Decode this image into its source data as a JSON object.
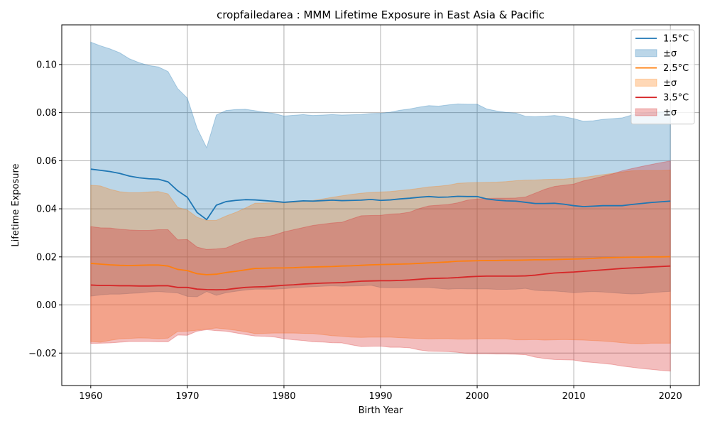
{
  "chart_data": {
    "type": "line",
    "title": "cropfailedarea : MMM Lifetime Exposure in East Asia & Pacific",
    "xlabel": "Birth Year",
    "ylabel": "Lifetime Exposure",
    "xlim": [
      1957,
      2023
    ],
    "ylim": [
      -0.0335,
      0.1165
    ],
    "xticks": [
      1960,
      1970,
      1980,
      1990,
      2000,
      2010,
      2020
    ],
    "yticks": [
      -0.02,
      0.0,
      0.02,
      0.04,
      0.06,
      0.08,
      0.1
    ],
    "ytick_labels": [
      "−0.02",
      "0.00",
      "0.02",
      "0.04",
      "0.06",
      "0.08",
      "0.10"
    ],
    "grid": true,
    "legend_position": "top-right",
    "x": [
      1960,
      1961,
      1962,
      1963,
      1964,
      1965,
      1966,
      1967,
      1968,
      1969,
      1970,
      1971,
      1972,
      1973,
      1974,
      1975,
      1976,
      1977,
      1978,
      1979,
      1980,
      1981,
      1982,
      1983,
      1984,
      1985,
      1986,
      1987,
      1988,
      1989,
      1990,
      1991,
      1992,
      1993,
      1994,
      1995,
      1996,
      1997,
      1998,
      1999,
      2000,
      2001,
      2002,
      2003,
      2004,
      2005,
      2006,
      2007,
      2008,
      2009,
      2010,
      2011,
      2012,
      2013,
      2014,
      2015,
      2016,
      2017,
      2018,
      2019,
      2020
    ],
    "series": [
      {
        "name": "1.5°C",
        "band_label": "±σ",
        "color": "#1f77b4",
        "mean": [
          0.0565,
          0.056,
          0.0555,
          0.0547,
          0.0536,
          0.0529,
          0.0525,
          0.0523,
          0.0512,
          0.0475,
          0.0448,
          0.0385,
          0.0355,
          0.0415,
          0.043,
          0.0435,
          0.0438,
          0.0437,
          0.0434,
          0.0431,
          0.0427,
          0.043,
          0.0433,
          0.0432,
          0.0434,
          0.0436,
          0.0434,
          0.0435,
          0.0436,
          0.0439,
          0.0435,
          0.0437,
          0.0441,
          0.0444,
          0.0448,
          0.0451,
          0.0448,
          0.0449,
          0.0452,
          0.0451,
          0.0451,
          0.0441,
          0.0436,
          0.0433,
          0.0432,
          0.0427,
          0.0422,
          0.0422,
          0.0423,
          0.0419,
          0.0413,
          0.0409,
          0.0411,
          0.0413,
          0.0413,
          0.0413,
          0.0418,
          0.0422,
          0.0426,
          0.0429,
          0.0432
        ],
        "sigma": [
          0.0528,
          0.0518,
          0.051,
          0.0502,
          0.0488,
          0.0479,
          0.0471,
          0.0467,
          0.0459,
          0.0425,
          0.0412,
          0.0351,
          0.0299,
          0.0375,
          0.0379,
          0.0378,
          0.0376,
          0.0371,
          0.0368,
          0.0365,
          0.0359,
          0.0359,
          0.0359,
          0.0356,
          0.0356,
          0.0356,
          0.0356,
          0.0356,
          0.0356,
          0.0357,
          0.0362,
          0.0365,
          0.0369,
          0.0371,
          0.0375,
          0.0378,
          0.0379,
          0.0383,
          0.0384,
          0.0384,
          0.0384,
          0.0374,
          0.0371,
          0.0368,
          0.0366,
          0.0358,
          0.0361,
          0.0363,
          0.0365,
          0.0364,
          0.0362,
          0.0355,
          0.0355,
          0.0359,
          0.0362,
          0.0365,
          0.0372,
          0.0375,
          0.0375,
          0.0375,
          0.0375
        ]
      },
      {
        "name": "2.5°C",
        "band_label": "±σ",
        "color": "#ff7f0e",
        "mean": [
          0.0173,
          0.017,
          0.0167,
          0.0165,
          0.0164,
          0.0165,
          0.0166,
          0.0166,
          0.0162,
          0.0148,
          0.0143,
          0.013,
          0.0126,
          0.0128,
          0.0135,
          0.014,
          0.0146,
          0.0152,
          0.0153,
          0.0154,
          0.0154,
          0.0155,
          0.0157,
          0.0158,
          0.0159,
          0.016,
          0.0162,
          0.0163,
          0.0165,
          0.0167,
          0.0168,
          0.0169,
          0.017,
          0.0171,
          0.0173,
          0.0175,
          0.0177,
          0.0179,
          0.0182,
          0.0183,
          0.0184,
          0.0185,
          0.0185,
          0.0186,
          0.0186,
          0.0187,
          0.0188,
          0.0188,
          0.0189,
          0.019,
          0.0191,
          0.0192,
          0.0194,
          0.0196,
          0.0197,
          0.0198,
          0.0199,
          0.0199,
          0.02,
          0.02,
          0.0201
        ],
        "sigma": [
          0.0325,
          0.0325,
          0.0314,
          0.0306,
          0.0303,
          0.0302,
          0.0304,
          0.0306,
          0.03,
          0.0258,
          0.0252,
          0.0235,
          0.0226,
          0.0224,
          0.0235,
          0.0245,
          0.0257,
          0.0271,
          0.0271,
          0.0271,
          0.0271,
          0.0272,
          0.0275,
          0.0277,
          0.0282,
          0.0288,
          0.0292,
          0.0297,
          0.03,
          0.0301,
          0.0302,
          0.0303,
          0.0306,
          0.0309,
          0.0312,
          0.0316,
          0.0317,
          0.0319,
          0.0324,
          0.0325,
          0.0325,
          0.0325,
          0.0326,
          0.0327,
          0.0331,
          0.0332,
          0.0332,
          0.0334,
          0.0334,
          0.0334,
          0.0336,
          0.0338,
          0.0342,
          0.0346,
          0.035,
          0.0355,
          0.0359,
          0.036,
          0.0359,
          0.0359,
          0.036
        ]
      },
      {
        "name": "3.5°C",
        "band_label": "±σ",
        "color": "#d62728",
        "mean": [
          0.0083,
          0.0081,
          0.0081,
          0.008,
          0.008,
          0.0079,
          0.0079,
          0.008,
          0.008,
          0.0073,
          0.0073,
          0.0066,
          0.0064,
          0.0063,
          0.0064,
          0.0069,
          0.0073,
          0.0075,
          0.0076,
          0.0079,
          0.0082,
          0.0084,
          0.0087,
          0.0089,
          0.0091,
          0.0092,
          0.0093,
          0.0096,
          0.0099,
          0.01,
          0.0101,
          0.0101,
          0.0102,
          0.0104,
          0.0107,
          0.011,
          0.0111,
          0.0112,
          0.0114,
          0.0117,
          0.0119,
          0.012,
          0.012,
          0.012,
          0.012,
          0.0121,
          0.0124,
          0.0129,
          0.0133,
          0.0135,
          0.0137,
          0.014,
          0.0143,
          0.0146,
          0.0149,
          0.0152,
          0.0154,
          0.0156,
          0.0158,
          0.016,
          0.0162
        ],
        "sigma": [
          0.0243,
          0.024,
          0.0239,
          0.0235,
          0.0232,
          0.0231,
          0.0231,
          0.0233,
          0.0233,
          0.0198,
          0.0199,
          0.0175,
          0.0167,
          0.017,
          0.0173,
          0.0185,
          0.0196,
          0.0204,
          0.0206,
          0.0212,
          0.0222,
          0.0229,
          0.0235,
          0.0242,
          0.0245,
          0.0249,
          0.0251,
          0.0262,
          0.0272,
          0.0272,
          0.0272,
          0.0277,
          0.0278,
          0.0282,
          0.0294,
          0.0302,
          0.0304,
          0.0306,
          0.0311,
          0.0319,
          0.0322,
          0.0323,
          0.0324,
          0.0324,
          0.0325,
          0.0328,
          0.0341,
          0.0352,
          0.036,
          0.0363,
          0.0366,
          0.0376,
          0.0382,
          0.0389,
          0.0396,
          0.0406,
          0.0413,
          0.042,
          0.0426,
          0.0432,
          0.0437
        ]
      }
    ]
  }
}
